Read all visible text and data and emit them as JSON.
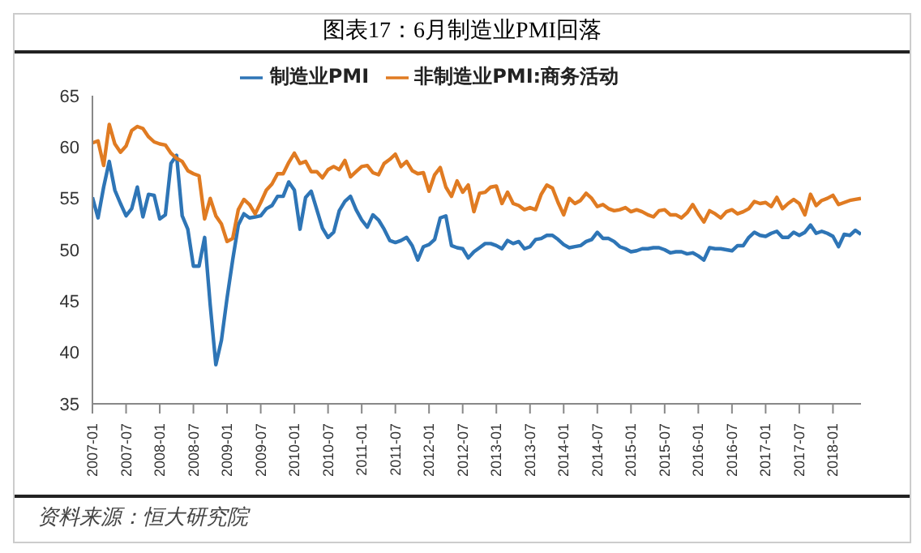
{
  "chart_data": {
    "type": "line",
    "title": "图表17：6月制造业PMI回落",
    "categories": [
      "2007-01",
      null,
      null,
      null,
      null,
      null,
      "2007-07",
      null,
      null,
      null,
      null,
      null,
      "2008-01",
      null,
      null,
      null,
      null,
      null,
      "2008-07",
      null,
      null,
      null,
      null,
      null,
      "2009-01",
      null,
      null,
      null,
      null,
      null,
      "2009-07",
      null,
      null,
      null,
      null,
      null,
      "2010-01",
      null,
      null,
      null,
      null,
      null,
      "2010-07",
      null,
      null,
      null,
      null,
      null,
      "2011-01",
      null,
      null,
      null,
      null,
      null,
      "2011-07",
      null,
      null,
      null,
      null,
      null,
      "2012-01",
      null,
      null,
      null,
      null,
      null,
      "2012-07",
      null,
      null,
      null,
      null,
      null,
      "2013-01",
      null,
      null,
      null,
      null,
      null,
      "2013-07",
      null,
      null,
      null,
      null,
      null,
      "2014-01",
      null,
      null,
      null,
      null,
      null,
      "2014-07",
      null,
      null,
      null,
      null,
      null,
      "2015-01",
      null,
      null,
      null,
      null,
      null,
      "2015-07",
      null,
      null,
      null,
      null,
      null,
      "2016-01",
      null,
      null,
      null,
      null,
      null,
      "2016-07",
      null,
      null,
      null,
      null,
      null,
      "2017-01",
      null,
      null,
      null,
      null,
      null,
      "2017-07",
      null,
      null,
      null,
      null,
      null,
      "2018-01",
      null,
      null,
      null,
      null,
      null
    ],
    "series": [
      {
        "name": "制造业PMI",
        "color": "#2e75b6",
        "values": [
          55.1,
          53.1,
          56.1,
          58.6,
          55.8,
          54.5,
          53.3,
          54.0,
          56.1,
          53.2,
          55.4,
          55.3,
          53.0,
          53.4,
          58.4,
          59.2,
          53.3,
          52.0,
          48.4,
          48.4,
          51.2,
          44.6,
          38.8,
          41.2,
          45.3,
          49.0,
          52.4,
          53.5,
          53.1,
          53.2,
          53.3,
          54.0,
          54.3,
          55.2,
          55.2,
          56.6,
          55.8,
          52.0,
          55.1,
          55.7,
          53.9,
          52.1,
          51.2,
          51.7,
          53.8,
          54.7,
          55.2,
          53.9,
          52.9,
          52.2,
          53.4,
          52.9,
          52.0,
          50.9,
          50.7,
          50.9,
          51.2,
          50.4,
          49.0,
          50.3,
          50.5,
          51.0,
          53.1,
          53.3,
          50.4,
          50.2,
          50.1,
          49.2,
          49.8,
          50.2,
          50.6,
          50.6,
          50.4,
          50.1,
          50.9,
          50.6,
          50.8,
          50.1,
          50.3,
          51.0,
          51.1,
          51.4,
          51.4,
          51.0,
          50.5,
          50.2,
          50.3,
          50.4,
          50.8,
          51.0,
          51.7,
          51.1,
          51.1,
          50.8,
          50.3,
          50.1,
          49.8,
          49.9,
          50.1,
          50.1,
          50.2,
          50.2,
          50.0,
          49.7,
          49.8,
          49.8,
          49.6,
          49.7,
          49.4,
          49.0,
          50.2,
          50.1,
          50.1,
          50.0,
          49.9,
          50.4,
          50.4,
          51.2,
          51.7,
          51.4,
          51.3,
          51.6,
          51.8,
          51.2,
          51.2,
          51.7,
          51.4,
          51.7,
          52.4,
          51.6,
          51.8,
          51.6,
          51.3,
          50.3,
          51.5,
          51.4,
          51.9,
          51.5
        ]
      },
      {
        "name": "非制造业PMI:商务活动",
        "color": "#e07b22",
        "values": [
          60.4,
          60.6,
          58.2,
          62.2,
          60.3,
          59.5,
          60.1,
          61.6,
          62.0,
          61.8,
          61.0,
          60.5,
          60.3,
          60.2,
          59.4,
          58.9,
          58.6,
          57.7,
          57.4,
          57.2,
          53.0,
          55.0,
          53.3,
          52.5,
          50.8,
          51.1,
          53.9,
          54.9,
          54.4,
          53.5,
          54.6,
          55.8,
          56.4,
          57.4,
          57.4,
          58.5,
          59.4,
          58.4,
          58.6,
          57.6,
          57.6,
          57.0,
          57.8,
          58.1,
          57.8,
          58.7,
          57.1,
          57.6,
          58.1,
          58.2,
          57.5,
          57.3,
          58.4,
          58.8,
          59.3,
          58.1,
          58.6,
          57.7,
          57.4,
          57.5,
          55.7,
          57.3,
          58.0,
          56.1,
          55.2,
          56.7,
          55.6,
          56.3,
          53.7,
          55.5,
          55.6,
          56.1,
          56.2,
          54.5,
          55.6,
          54.5,
          54.3,
          53.9,
          54.1,
          53.9,
          55.4,
          56.3,
          56.0,
          54.6,
          53.4,
          55.0,
          54.5,
          54.8,
          55.5,
          55.0,
          54.2,
          54.4,
          54.0,
          53.8,
          53.9,
          54.1,
          53.7,
          53.9,
          53.7,
          53.4,
          53.2,
          53.8,
          53.9,
          53.4,
          53.4,
          53.1,
          53.6,
          54.4,
          53.5,
          52.7,
          53.8,
          53.5,
          53.1,
          53.7,
          53.9,
          53.5,
          53.7,
          54.0,
          54.7,
          54.5,
          54.6,
          54.2,
          55.1,
          54.0,
          54.5,
          54.9,
          54.5,
          53.4,
          55.4,
          54.3,
          54.8,
          55.0,
          55.3,
          54.4,
          54.6,
          54.8,
          54.9,
          55.0
        ]
      }
    ],
    "ylim": [
      35,
      65
    ],
    "yticks": [
      35,
      40,
      45,
      50,
      55,
      60,
      65
    ],
    "legend": "top",
    "marker": "none",
    "line_style": "solid",
    "annotations": [
      "资料来源：恒大研究院"
    ]
  }
}
